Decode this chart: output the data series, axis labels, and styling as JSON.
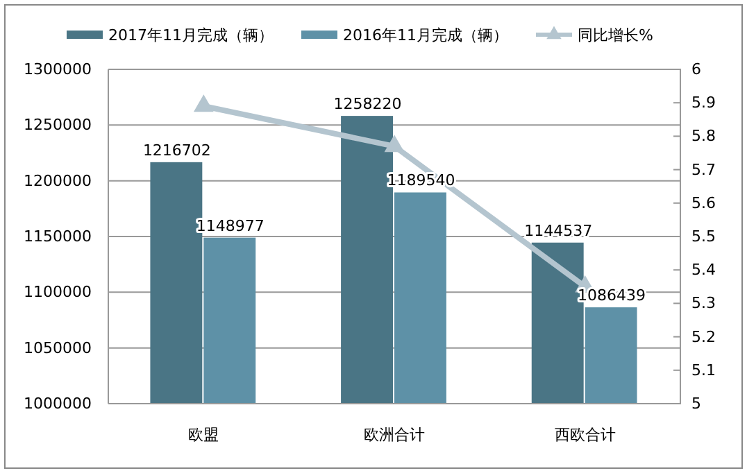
{
  "chart_data": {
    "type": "bar",
    "categories": [
      "欧盟",
      "欧洲合计",
      "西欧合计"
    ],
    "series": [
      {
        "name": "2017年11月完成（辆）",
        "color": "#4a7585",
        "values": [
          1216702,
          1258220,
          1144537
        ]
      },
      {
        "name": "2016年11月完成（辆）",
        "color": "#5e91a7",
        "values": [
          1148977,
          1189540,
          1086439
        ]
      },
      {
        "name": "同比增长%",
        "type": "line",
        "axis": "y2",
        "color": "#b4c5cf",
        "marker": "triangle",
        "values": [
          5.89,
          5.77,
          5.35
        ]
      }
    ],
    "ylim": [
      1000000,
      1300000
    ],
    "yticks": [
      1000000,
      1050000,
      1100000,
      1150000,
      1200000,
      1250000,
      1300000
    ],
    "y2lim": [
      5,
      6
    ],
    "y2ticks": [
      5,
      5.1,
      5.2,
      5.3,
      5.4,
      5.5,
      5.6,
      5.7,
      5.8,
      5.9,
      6
    ],
    "value_labels": [
      [
        "1216702",
        "1258220",
        "1144537"
      ],
      [
        "1148977",
        "1189540",
        "1086439"
      ],
      null
    ],
    "grid": "y",
    "legend": "top"
  }
}
